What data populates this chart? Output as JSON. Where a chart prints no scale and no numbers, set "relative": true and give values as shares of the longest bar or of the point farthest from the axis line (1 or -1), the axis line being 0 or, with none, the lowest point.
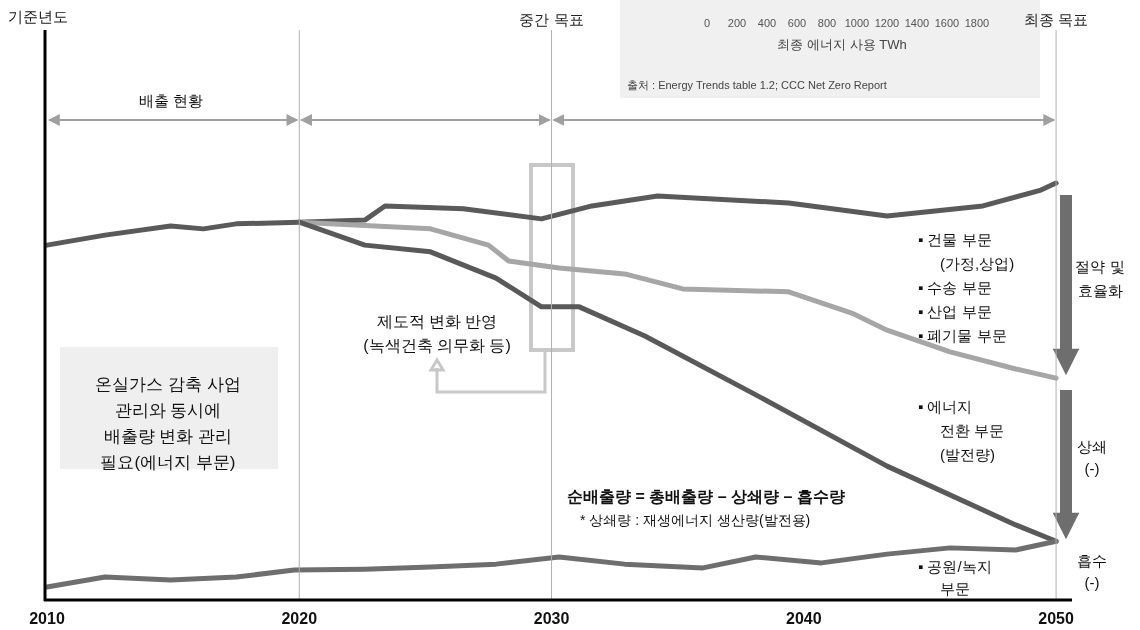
{
  "chart_data": {
    "type": "line",
    "relative": true,
    "xlim": [
      2010,
      2050.5
    ],
    "xticks": [
      2010,
      2020,
      2030,
      2040,
      2050
    ],
    "series": [
      {
        "color": "#5a5a5a",
        "x": [
          2010,
          2012.3,
          2014.9,
          2016.2,
          2017.5,
          2020,
          2022.6,
          2023.4,
          2026.5,
          2029.6,
          2031.6,
          2034.2,
          2039.4,
          2043.3,
          2047.1,
          2049.4,
          2050
        ],
        "values": [
          0.851,
          0.875,
          0.897,
          0.89,
          0.902,
          0.906,
          0.911,
          0.945,
          0.938,
          0.914,
          0.945,
          0.969,
          0.952,
          0.921,
          0.945,
          0.983,
          1
        ]
      },
      {
        "color": "#a6a6a6",
        "x": [
          2020,
          2025.2,
          2027.5,
          2028.3,
          2030.3,
          2032.9,
          2035.2,
          2039.4,
          2041.9,
          2043.3,
          2045.8,
          2048.4,
          2050
        ],
        "values": [
          0.906,
          0.89,
          0.851,
          0.813,
          0.796,
          0.782,
          0.746,
          0.739,
          0.688,
          0.647,
          0.595,
          0.554,
          0.532
        ]
      },
      {
        "color": "#595959",
        "x": [
          2020,
          2022.6,
          2025.2,
          2027.8,
          2029.6,
          2031.1,
          2033.7,
          2038.1,
          2043.3,
          2048.4,
          2050
        ],
        "values": [
          0.906,
          0.851,
          0.835,
          0.772,
          0.703,
          0.703,
          0.633,
          0.492,
          0.321,
          0.18,
          0.141
        ]
      },
      {
        "color": "#6e6e6e",
        "x": [
          2010,
          2012.3,
          2014.9,
          2017.5,
          2019.8,
          2022.6,
          2025.2,
          2027.8,
          2030.3,
          2032.9,
          2036,
          2038.1,
          2040.7,
          2043.3,
          2045.8,
          2048.4,
          2050
        ],
        "values": [
          0.031,
          0.055,
          0.048,
          0.055,
          0.072,
          0.074,
          0.079,
          0.086,
          0.103,
          0.086,
          0.077,
          0.103,
          0.089,
          0.11,
          0.125,
          0.12,
          0.141
        ]
      }
    ],
    "ref_lines": [
      {
        "axis": "x",
        "value": 2020,
        "label": null,
        "color": "#b0b0b0"
      },
      {
        "axis": "x",
        "value": 2030,
        "label": "중간 목표",
        "color": "#b0b0b0"
      },
      {
        "axis": "x",
        "value": 2050,
        "label": "최종 목표",
        "color": "#b0b0b0"
      }
    ],
    "annotations": [
      "배출 현황",
      "기준년도",
      "온실가스 감축 사업\n관리와 동시에\n배출량 변화 관리\n필요(에너지 부문)",
      "제도적 변화 반영\n(녹색건축 의무화 등)",
      "▪ 건물 부문\n(가정,상업)\n▪ 수송 부문\n▪ 산업 부문\n▪ 폐기물 부문",
      "▪ 에너지\n전환 부문\n(발전량)",
      "▪ 공원/녹지\n부문",
      "절약 및\n효율화",
      "상쇄\n(-)",
      "흡수\n(-)",
      "순배출량 = 총배출량 – 상쇄량 – 흡수량",
      "* 상쇄량 : 재생에너지 생산량(발전용)",
      "최종 에너지 사용 TWh",
      "출처 : Energy Trends table 1.2; CCC Net Zero Report",
      "0",
      "200",
      "400",
      "600",
      "800",
      "1000",
      "1200",
      "1400",
      "1600",
      "1800"
    ]
  }
}
